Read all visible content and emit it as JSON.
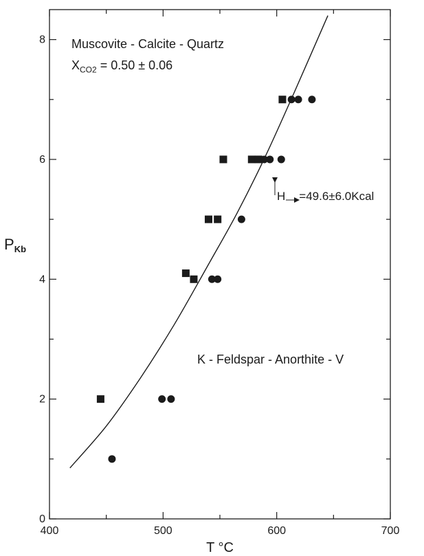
{
  "chart_data": {
    "type": "scatter",
    "title": "",
    "xlabel": "T °C",
    "ylabel": "P",
    "ylabel_subscript": "Kb",
    "xlim": [
      400,
      700
    ],
    "ylim": [
      0,
      8.5
    ],
    "x_ticks": [
      400,
      500,
      600,
      700
    ],
    "y_ticks": [
      0,
      2,
      4,
      6,
      8
    ],
    "grid": false,
    "legend": "none",
    "colors": {
      "ink": "#1b1b1b"
    },
    "series": [
      {
        "marker": "square",
        "x": [
          445,
          520,
          527,
          540,
          548,
          553,
          578,
          584,
          605
        ],
        "y": [
          2,
          4.1,
          4,
          5,
          5,
          6,
          6,
          6,
          7
        ]
      },
      {
        "marker": "circle",
        "x": [
          455,
          499,
          507,
          543,
          548,
          569,
          589,
          594,
          604,
          613,
          619,
          631
        ],
        "y": [
          1,
          2,
          2,
          4,
          4,
          5,
          6,
          6,
          6,
          7,
          7,
          7
        ]
      },
      {
        "marker": "line",
        "x": [
          418,
          450,
          480,
          510,
          540,
          565,
          590,
          615,
          645
        ],
        "y": [
          0.85,
          1.55,
          2.35,
          3.25,
          4.25,
          5.1,
          6.05,
          7.1,
          8.4
        ]
      }
    ],
    "annotations": {
      "assemblage_top": "Muscovite - Calcite - Quartz",
      "xco2_main": "X",
      "xco2_sub": "CO2",
      "xco2_value": " = 0.50 ± 0.06",
      "enthalpy_h": "H",
      "enthalpy_value": "=49.6±6.0Kcal",
      "assemblage_bottom": "K - Feldspar - Anorthite - V"
    }
  }
}
